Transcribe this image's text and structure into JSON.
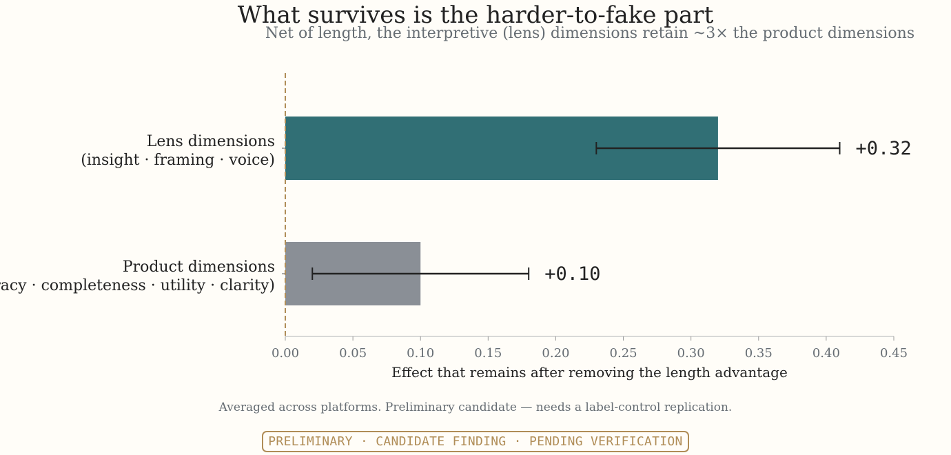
{
  "title": "What survives is the harder-to-fake part",
  "subtitle": "Net of length, the interpretive (lens) dimensions retain ~3× the product dimensions",
  "footnote": "Averaged across platforms. Preliminary candidate — needs a label-control replication.",
  "badge": "PRELIMINARY · CANDIDATE FINDING · PENDING VERIFICATION",
  "chart_data": {
    "type": "bar",
    "orientation": "horizontal",
    "title": "What survives is the harder-to-fake part",
    "subtitle": "Net of length, the interpretive (lens) dimensions retain ~3× the product dimensions",
    "xlabel": "Effect that remains after removing the length advantage",
    "ylabel": "",
    "xlim": [
      0,
      0.45
    ],
    "xticks": [
      "0.00",
      "0.05",
      "0.10",
      "0.15",
      "0.20",
      "0.25",
      "0.30",
      "0.35",
      "0.40",
      "0.45"
    ],
    "grid": false,
    "reference_line": 0,
    "categories": [
      [
        "Lens dimensions",
        "(insight · framing · voice)"
      ],
      [
        "Product dimensions",
        "(accuracy · completeness · utility · clarity)"
      ]
    ],
    "values": [
      0.32,
      0.1
    ],
    "ci_low": [
      0.23,
      0.02
    ],
    "ci_high": [
      0.41,
      0.18
    ],
    "value_labels": [
      "+0.32",
      "+0.10"
    ],
    "colors": [
      "#316f75",
      "#8a8f96"
    ],
    "reference_color": "#b08d57"
  }
}
